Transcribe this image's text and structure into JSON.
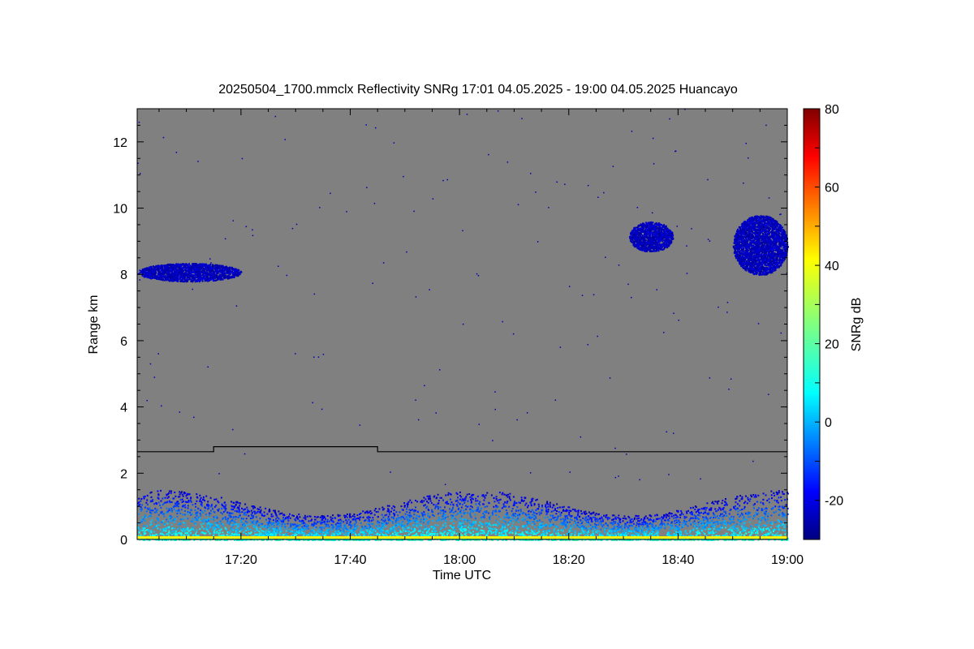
{
  "chart_data": {
    "type": "heatmap",
    "title": "20250504_1700.mmclx Reflectivity SNRg   17:01 04.05.2025 - 19:00 04.05.2025 Huancayo",
    "xlabel": "Time UTC",
    "ylabel": "Range km",
    "x_range": [
      "17:01",
      "19:00"
    ],
    "ylim": [
      0,
      13
    ],
    "x_ticks": [
      "17:20",
      "17:40",
      "18:00",
      "18:20",
      "18:40",
      "19:00"
    ],
    "y_ticks": [
      "0",
      "2",
      "4",
      "6",
      "8",
      "10",
      "12"
    ],
    "colorbar": {
      "label": "SNRg dB",
      "range": [
        -30,
        80
      ],
      "ticks": [
        "-20",
        "0",
        "20",
        "40",
        "60",
        "80"
      ],
      "colormap": "jet"
    },
    "background_color": "#808080",
    "grid": false,
    "reference_line": {
      "points": [
        {
          "time": "17:01",
          "range_km": 2.65
        },
        {
          "time": "17:15",
          "range_km": 2.65
        },
        {
          "time": "17:15",
          "range_km": 2.8
        },
        {
          "time": "17:45",
          "range_km": 2.8
        },
        {
          "time": "17:45",
          "range_km": 2.65
        },
        {
          "time": "19:00",
          "range_km": 2.65
        }
      ]
    },
    "echo_regions": [
      {
        "name": "cloud layer 8 km",
        "time_start": "17:01",
        "time_end": "17:20",
        "range_start_km": 7.8,
        "range_end_km": 8.35,
        "snr_db": -25
      },
      {
        "name": "cloud 18:31-18:39",
        "time_start": "18:31",
        "time_end": "18:39",
        "range_start_km": 8.7,
        "range_end_km": 9.6,
        "snr_db": -25
      },
      {
        "name": "cloud 18:50-19:00",
        "time_start": "18:50",
        "time_end": "19:00",
        "range_start_km": 8.0,
        "range_end_km": 9.8,
        "snr_db": -25
      },
      {
        "name": "boundary layer echo",
        "time_start": "17:01",
        "time_end": "19:00",
        "range_start_km": 0.0,
        "range_end_km": 1.5,
        "snr_db": 0
      }
    ]
  }
}
